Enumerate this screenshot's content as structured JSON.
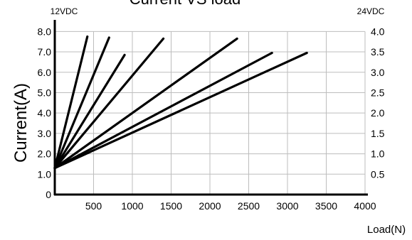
{
  "chart_data": {
    "type": "line",
    "title": "Current VS load",
    "xlabel": "Load(N)",
    "ylabel": "Current(A)",
    "left_axis_label": "12VDC",
    "right_axis_label": "24VDC",
    "x_ticks": [
      "500",
      "1000",
      "1500",
      "2000",
      "2500",
      "3000",
      "3500",
      "4000"
    ],
    "y_ticks": [
      "0",
      "1.0",
      "2.0",
      "3.0",
      "4.0",
      "5.0",
      "6.0",
      "7.0",
      "8.0"
    ],
    "y2_ticks": [
      "0.5",
      "1.0",
      "1.5",
      "2.0",
      "2.5",
      "3.0",
      "3.5",
      "4.0"
    ],
    "xlim": [
      0,
      4000
    ],
    "ylim": [
      0,
      8.5
    ],
    "y2lim": [
      0,
      4.25
    ],
    "grid": true,
    "line_color": "#000000",
    "series": [
      {
        "x": [
          0,
          420
        ],
        "y": [
          1.3,
          7.75
        ]
      },
      {
        "x": [
          0,
          700
        ],
        "y": [
          1.3,
          7.7
        ]
      },
      {
        "x": [
          0,
          900
        ],
        "y": [
          1.3,
          6.85
        ]
      },
      {
        "x": [
          0,
          1400
        ],
        "y": [
          1.3,
          7.65
        ]
      },
      {
        "x": [
          0,
          2350
        ],
        "y": [
          1.3,
          7.65
        ]
      },
      {
        "x": [
          0,
          2800
        ],
        "y": [
          1.3,
          6.95
        ]
      },
      {
        "x": [
          0,
          3250
        ],
        "y": [
          1.3,
          6.95
        ]
      }
    ]
  }
}
